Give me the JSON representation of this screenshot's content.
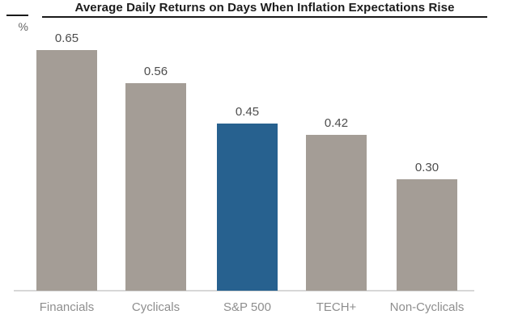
{
  "chart_data": {
    "type": "bar",
    "title": "Average Daily Returns on Days When Inflation Expectations Rise",
    "xlabel": "",
    "ylabel": "%",
    "categories": [
      "Financials",
      "Cyclicals",
      "S&P 500",
      "TECH+",
      "Non-Cyclicals"
    ],
    "values": [
      0.65,
      0.56,
      0.45,
      0.42,
      0.3
    ],
    "value_labels": [
      "0.65",
      "0.56",
      "0.45",
      "0.42",
      "0.30"
    ],
    "ylim": [
      0,
      0.7
    ],
    "grid": false,
    "legend": false,
    "highlight_index": 2,
    "highlighted_category": "S&P 500",
    "colors": {
      "bar": "#a49d96",
      "highlight": "#27618f",
      "title_text": "#1c1c1c",
      "value_label_text": "#4d4d4d",
      "category_label_text": "#8e8e8e",
      "axis_line": "#d7d7d7"
    }
  }
}
